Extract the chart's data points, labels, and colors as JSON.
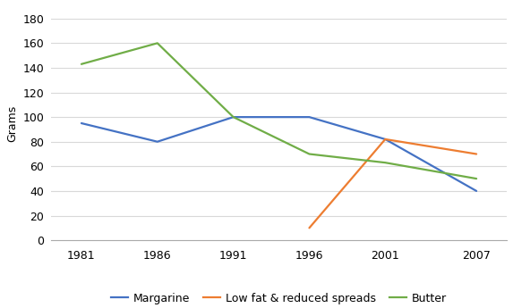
{
  "years": [
    1981,
    1986,
    1991,
    1996,
    2001,
    2007
  ],
  "margarine": [
    95,
    80,
    100,
    100,
    82,
    40
  ],
  "low_fat_years": [
    1996,
    2001,
    2007
  ],
  "low_fat": [
    10,
    82,
    70
  ],
  "butter": [
    143,
    160,
    100,
    70,
    63,
    50
  ],
  "margarine_color": "#4472C4",
  "low_fat_color": "#ED7D31",
  "butter_color": "#70AD47",
  "ylabel": "Grams",
  "ylim": [
    0,
    190
  ],
  "yticks": [
    0,
    20,
    40,
    60,
    80,
    100,
    120,
    140,
    160,
    180
  ],
  "legend_labels": [
    "Margarine",
    "Low fat & reduced spreads",
    "Butter"
  ],
  "line_width": 1.6,
  "grid_color": "#D9D9D9",
  "background_color": "#FFFFFF",
  "xlim": [
    1979,
    2009
  ]
}
